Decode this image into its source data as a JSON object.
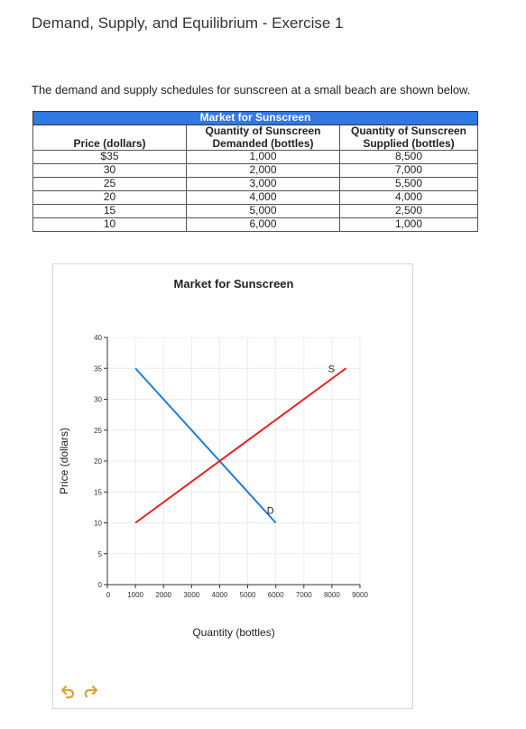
{
  "header": {
    "title": "Demand, Supply, and Equilibrium - Exercise 1",
    "intro": "The demand and supply schedules for sunscreen at a small beach are shown below."
  },
  "schedule_table": {
    "caption": "Market for Sunscreen",
    "col_price": "Price (dollars)",
    "col_demanded": "Quantity of Sunscreen Demanded (bottles)",
    "col_supplied": "Quantity of Sunscreen Supplied (bottles)",
    "rows": [
      {
        "price": "$35",
        "demanded": "1,000",
        "supplied": "8,500"
      },
      {
        "price": "30",
        "demanded": "2,000",
        "supplied": "7,000"
      },
      {
        "price": "25",
        "demanded": "3,000",
        "supplied": "5,500"
      },
      {
        "price": "20",
        "demanded": "4,000",
        "supplied": "4,000"
      },
      {
        "price": "15",
        "demanded": "5,000",
        "supplied": "2,500"
      },
      {
        "price": "10",
        "demanded": "6,000",
        "supplied": "1,000"
      }
    ]
  },
  "chart_data": {
    "type": "line",
    "title": "Market for Sunscreen",
    "xlabel": "Quantity (bottles)",
    "ylabel": "Price (dollars)",
    "xlim": [
      0,
      9000
    ],
    "ylim": [
      0,
      40
    ],
    "x_ticks": [
      0,
      1000,
      2000,
      3000,
      4000,
      5000,
      6000,
      7000,
      8000,
      9000
    ],
    "y_ticks": [
      0,
      5,
      10,
      15,
      20,
      25,
      30,
      35,
      40
    ],
    "grid": true,
    "series": [
      {
        "name": "D",
        "color": "#1f7ae0",
        "points": [
          [
            1000,
            35
          ],
          [
            6000,
            10
          ]
        ]
      },
      {
        "name": "S",
        "color": "#e8201c",
        "points": [
          [
            1000,
            10
          ],
          [
            8500,
            35
          ]
        ]
      }
    ]
  },
  "toolbar": {
    "undo_icon": "undo-icon",
    "redo_icon": "redo-icon",
    "icon_color": "#e0a030"
  }
}
